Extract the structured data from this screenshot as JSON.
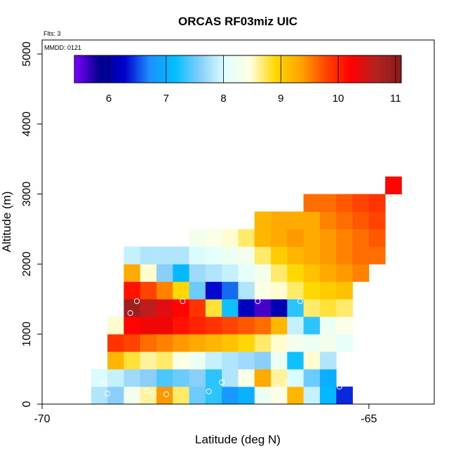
{
  "chart_data": {
    "type": "heatmap",
    "title": "ORCAS RF03miz UIC",
    "xlabel": "Latitude (deg N)",
    "ylabel": "Altitude (m)",
    "xlim": [
      -70,
      -64
    ],
    "ylim": [
      0,
      5200
    ],
    "x_ticks": [
      -70,
      -65
    ],
    "y_ticks": [
      0,
      1000,
      2000,
      3000,
      4000,
      5000
    ],
    "x_tick_labels": [
      "-70",
      "-65"
    ],
    "y_tick_labels": [
      "0",
      "1000",
      "2000",
      "3000",
      "4000",
      "5000"
    ],
    "annotations": {
      "flights": "Flts: 3",
      "date": "MMDD: 0121"
    },
    "colorbar": {
      "range": [
        5.4,
        11.1
      ],
      "ticks": [
        6,
        7,
        8,
        9,
        10,
        11
      ],
      "tick_labels": [
        "6",
        "7",
        "8",
        "9",
        "10",
        "11"
      ],
      "palette": [
        "#7f00ff",
        "#00008b",
        "#0000cd",
        "#1e90ff",
        "#00bfff",
        "#87cefa",
        "#e0ffff",
        "#ffffe0",
        "#ffd700",
        "#ffa500",
        "#ff4500",
        "#ff0000",
        "#b22222",
        "#8b1a1a"
      ]
    },
    "grid": {
      "x0": -69.25,
      "dx": 0.25,
      "y0": 0,
      "dy": 250
    },
    "cells": [
      [
        0,
        0,
        7.8
      ],
      [
        1,
        0,
        7.6
      ],
      [
        2,
        0,
        8.3
      ],
      [
        3,
        0,
        8.6
      ],
      [
        4,
        0,
        9.4
      ],
      [
        5,
        0,
        8.7
      ],
      [
        6,
        0,
        7.5
      ],
      [
        7,
        0,
        7.3
      ],
      [
        8,
        0,
        6.8
      ],
      [
        9,
        0,
        7.0
      ],
      [
        10,
        0,
        8.2
      ],
      [
        11,
        0,
        8.4
      ],
      [
        12,
        0,
        9.2
      ],
      [
        13,
        0,
        7.9
      ],
      [
        14,
        0,
        7.1
      ],
      [
        15,
        0,
        6.4
      ],
      [
        0,
        1,
        8.0
      ],
      [
        1,
        1,
        7.9
      ],
      [
        2,
        1,
        7.7
      ],
      [
        3,
        1,
        7.6
      ],
      [
        4,
        1,
        7.4
      ],
      [
        5,
        1,
        7.5
      ],
      [
        6,
        1,
        7.6
      ],
      [
        7,
        1,
        7.3
      ],
      [
        8,
        1,
        7.8
      ],
      [
        9,
        1,
        8.4
      ],
      [
        10,
        1,
        9.3
      ],
      [
        11,
        1,
        8.6
      ],
      [
        12,
        1,
        8.0
      ],
      [
        13,
        1,
        7.5
      ],
      [
        14,
        1,
        7.0
      ],
      [
        1,
        2,
        9.2
      ],
      [
        2,
        2,
        8.8
      ],
      [
        3,
        2,
        8.6
      ],
      [
        4,
        2,
        8.7
      ],
      [
        5,
        2,
        8.4
      ],
      [
        6,
        2,
        8.2
      ],
      [
        7,
        2,
        7.9
      ],
      [
        8,
        2,
        7.8
      ],
      [
        9,
        2,
        7.7
      ],
      [
        10,
        2,
        7.6
      ],
      [
        11,
        2,
        8.2
      ],
      [
        12,
        2,
        7.2
      ],
      [
        13,
        2,
        8.5
      ],
      [
        14,
        2,
        7.8
      ],
      [
        1,
        3,
        9.9
      ],
      [
        2,
        3,
        9.8
      ],
      [
        3,
        3,
        9.6
      ],
      [
        4,
        3,
        9.5
      ],
      [
        5,
        3,
        9.4
      ],
      [
        6,
        3,
        9.3
      ],
      [
        7,
        3,
        9.2
      ],
      [
        8,
        3,
        9.1
      ],
      [
        9,
        3,
        8.9
      ],
      [
        10,
        3,
        8.7
      ],
      [
        11,
        3,
        8.5
      ],
      [
        12,
        3,
        8.3
      ],
      [
        13,
        3,
        8.2
      ],
      [
        14,
        3,
        8.3
      ],
      [
        15,
        3,
        8.1
      ],
      [
        1,
        4,
        8.5
      ],
      [
        2,
        4,
        10.2
      ],
      [
        3,
        4,
        10.3
      ],
      [
        4,
        4,
        10.3
      ],
      [
        5,
        4,
        10.1
      ],
      [
        6,
        4,
        10.0
      ],
      [
        7,
        4,
        9.9
      ],
      [
        8,
        4,
        9.8
      ],
      [
        9,
        4,
        9.7
      ],
      [
        10,
        4,
        9.6
      ],
      [
        11,
        4,
        9.2
      ],
      [
        12,
        4,
        7.9
      ],
      [
        13,
        4,
        7.3
      ],
      [
        14,
        4,
        8.2
      ],
      [
        15,
        4,
        8.4
      ],
      [
        2,
        5,
        10.9
      ],
      [
        3,
        5,
        10.6
      ],
      [
        4,
        5,
        10.4
      ],
      [
        5,
        5,
        10.2
      ],
      [
        6,
        5,
        9.9
      ],
      [
        7,
        5,
        8.8
      ],
      [
        8,
        5,
        7.2
      ],
      [
        9,
        5,
        6.2
      ],
      [
        10,
        5,
        5.6
      ],
      [
        11,
        5,
        6.1
      ],
      [
        12,
        5,
        7.3
      ],
      [
        13,
        5,
        8.7
      ],
      [
        14,
        5,
        8.8
      ],
      [
        15,
        5,
        8.7
      ],
      [
        2,
        6,
        10.1
      ],
      [
        3,
        6,
        9.8
      ],
      [
        4,
        6,
        9.5
      ],
      [
        5,
        6,
        8.9
      ],
      [
        6,
        6,
        7.5
      ],
      [
        7,
        6,
        6.3
      ],
      [
        8,
        6,
        6.6
      ],
      [
        9,
        6,
        7.8
      ],
      [
        10,
        6,
        8.4
      ],
      [
        11,
        6,
        8.5
      ],
      [
        12,
        6,
        8.7
      ],
      [
        13,
        6,
        8.9
      ],
      [
        14,
        6,
        9.0
      ],
      [
        15,
        6,
        9.1
      ],
      [
        2,
        7,
        9.3
      ],
      [
        3,
        7,
        8.5
      ],
      [
        4,
        7,
        7.6
      ],
      [
        5,
        7,
        7.1
      ],
      [
        6,
        7,
        7.7
      ],
      [
        7,
        7,
        7.8
      ],
      [
        8,
        7,
        7.9
      ],
      [
        9,
        7,
        8.1
      ],
      [
        10,
        7,
        8.3
      ],
      [
        11,
        7,
        8.7
      ],
      [
        12,
        7,
        8.9
      ],
      [
        13,
        7,
        9.1
      ],
      [
        14,
        7,
        9.3
      ],
      [
        15,
        7,
        9.4
      ],
      [
        16,
        7,
        9.5
      ],
      [
        2,
        8,
        7.9
      ],
      [
        3,
        8,
        7.8
      ],
      [
        4,
        8,
        7.8
      ],
      [
        5,
        8,
        7.8
      ],
      [
        6,
        8,
        8.0
      ],
      [
        7,
        8,
        8.1
      ],
      [
        8,
        8,
        8.2
      ],
      [
        9,
        8,
        8.3
      ],
      [
        10,
        8,
        8.7
      ],
      [
        11,
        8,
        9.0
      ],
      [
        12,
        8,
        9.2
      ],
      [
        13,
        8,
        9.3
      ],
      [
        14,
        8,
        9.4
      ],
      [
        15,
        8,
        9.5
      ],
      [
        16,
        8,
        9.6
      ],
      [
        17,
        8,
        9.6
      ],
      [
        6,
        9,
        8.3
      ],
      [
        7,
        9,
        8.4
      ],
      [
        8,
        9,
        8.5
      ],
      [
        9,
        9,
        8.7
      ],
      [
        10,
        9,
        9.2
      ],
      [
        11,
        9,
        9.3
      ],
      [
        12,
        9,
        9.4
      ],
      [
        13,
        9,
        9.3
      ],
      [
        14,
        9,
        9.4
      ],
      [
        15,
        9,
        9.5
      ],
      [
        16,
        9,
        9.6
      ],
      [
        17,
        9,
        9.7
      ],
      [
        10,
        10,
        9.2
      ],
      [
        11,
        10,
        9.3
      ],
      [
        12,
        10,
        9.3
      ],
      [
        13,
        10,
        9.3
      ],
      [
        14,
        10,
        9.5
      ],
      [
        15,
        10,
        9.6
      ],
      [
        16,
        10,
        9.7
      ],
      [
        17,
        10,
        9.8
      ],
      [
        13,
        11,
        9.6
      ],
      [
        14,
        11,
        9.6
      ],
      [
        15,
        11,
        9.7
      ],
      [
        16,
        11,
        9.8
      ],
      [
        17,
        11,
        9.9
      ],
      [
        18,
        12,
        10.2
      ]
    ],
    "markers": [
      {
        "lat": -69.0,
        "alt": 150
      },
      {
        "lat": -69.05,
        "alt": 300
      },
      {
        "lat": -68.4,
        "alt": 180
      },
      {
        "lat": -68.3,
        "alt": 150
      },
      {
        "lat": -68.1,
        "alt": 140
      },
      {
        "lat": -67.45,
        "alt": 180
      },
      {
        "lat": -67.25,
        "alt": 310
      },
      {
        "lat": -66.4,
        "alt": 240
      },
      {
        "lat": -66.25,
        "alt": 300
      },
      {
        "lat": -65.45,
        "alt": 250
      },
      {
        "lat": -64.95,
        "alt": 820
      },
      {
        "lat": -68.65,
        "alt": 1300
      },
      {
        "lat": -68.55,
        "alt": 1470
      },
      {
        "lat": -67.85,
        "alt": 1470
      },
      {
        "lat": -66.7,
        "alt": 1470
      },
      {
        "lat": -66.05,
        "alt": 1470
      },
      {
        "lat": -68.85,
        "alt": 2230
      },
      {
        "lat": -64.3,
        "alt": 3230
      }
    ]
  }
}
